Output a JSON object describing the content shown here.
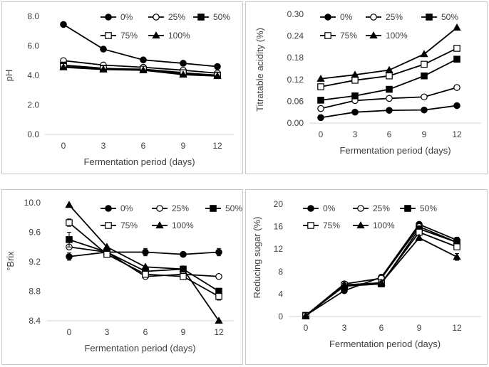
{
  "figure": {
    "legend_labels": [
      "0%",
      "25%",
      "50%",
      "75%",
      "100%"
    ]
  },
  "chart_data": [
    {
      "type": "line",
      "panel": "pH",
      "x": [
        0,
        3,
        6,
        9,
        12
      ],
      "xlabel": "Fermentation period (days)",
      "ylabel": "pH",
      "ylim": [
        0.0,
        8.0
      ],
      "yticks": [
        "0.0",
        "2.0",
        "4.0",
        "6.0",
        "8.0"
      ],
      "xticks": [
        "0",
        "3",
        "6",
        "9",
        "12"
      ],
      "grid": false,
      "legend": "top",
      "series": [
        {
          "name": "0%",
          "marker": "filled-circle",
          "values": [
            7.45,
            5.78,
            5.05,
            4.82,
            4.6
          ]
        },
        {
          "name": "25%",
          "marker": "open-circle",
          "values": [
            5.0,
            4.7,
            4.55,
            4.35,
            4.15
          ]
        },
        {
          "name": "50%",
          "marker": "filled-square",
          "values": [
            4.7,
            4.48,
            4.38,
            4.12,
            4.02
          ]
        },
        {
          "name": "75%",
          "marker": "open-square",
          "values": [
            4.6,
            4.45,
            4.42,
            4.18,
            4.0
          ]
        },
        {
          "name": "100%",
          "marker": "filled-triangle",
          "values": [
            4.55,
            4.4,
            4.35,
            4.05,
            3.95
          ]
        }
      ]
    },
    {
      "type": "line",
      "panel": "titratable-acidity",
      "x": [
        0,
        3,
        6,
        9,
        12
      ],
      "xlabel": "Fermentation period (days)",
      "ylabel": "Titratable acidity (%)",
      "ylim": [
        0.0,
        0.3
      ],
      "yticks": [
        "0.00",
        "0.06",
        "0.12",
        "0.18",
        "0.24",
        "0.30"
      ],
      "xticks": [
        "0",
        "3",
        "6",
        "9",
        "12"
      ],
      "grid": false,
      "legend": "top",
      "series": [
        {
          "name": "0%",
          "marker": "filled-circle",
          "values": [
            0.015,
            0.03,
            0.035,
            0.036,
            0.048
          ]
        },
        {
          "name": "25%",
          "marker": "open-circle",
          "values": [
            0.04,
            0.062,
            0.068,
            0.072,
            0.098
          ]
        },
        {
          "name": "50%",
          "marker": "filled-square",
          "values": [
            0.063,
            0.075,
            0.093,
            0.13,
            0.176
          ]
        },
        {
          "name": "75%",
          "marker": "open-square",
          "values": [
            0.1,
            0.118,
            0.13,
            0.162,
            0.206
          ]
        },
        {
          "name": "100%",
          "marker": "filled-triangle",
          "values": [
            0.122,
            0.133,
            0.146,
            0.19,
            0.263
          ]
        }
      ]
    },
    {
      "type": "line",
      "panel": "brix",
      "x": [
        0,
        3,
        6,
        9,
        12
      ],
      "xlabel": "Fermentation period (days)",
      "ylabel": "°Brix",
      "ylim": [
        8.4,
        10.0
      ],
      "yticks": [
        "8.4",
        "8.8",
        "9.2",
        "9.6",
        "10.0"
      ],
      "xticks": [
        "0",
        "3",
        "6",
        "9",
        "12"
      ],
      "grid": false,
      "legend": "top",
      "series": [
        {
          "name": "0%",
          "marker": "filled-circle",
          "values": [
            9.27,
            9.33,
            9.33,
            9.3,
            9.33
          ],
          "errors": [
            0.05,
            0.0,
            0.05,
            0.0,
            0.05
          ]
        },
        {
          "name": "25%",
          "marker": "open-circle",
          "values": [
            9.4,
            9.33,
            9.0,
            9.03,
            9.0
          ],
          "errors": [
            0.0,
            0.0,
            0.0,
            0.0,
            0.0
          ]
        },
        {
          "name": "50%",
          "marker": "filled-square",
          "values": [
            9.5,
            9.33,
            9.07,
            9.1,
            8.8
          ],
          "errors": [
            0.1,
            0.0,
            0.04,
            0.0,
            0.04
          ]
        },
        {
          "name": "75%",
          "marker": "open-square",
          "values": [
            9.73,
            9.3,
            9.03,
            9.0,
            8.73
          ],
          "errors": [
            0.05,
            0.0,
            0.04,
            0.04,
            0.05
          ]
        },
        {
          "name": "100%",
          "marker": "filled-triangle",
          "values": [
            9.97,
            9.4,
            9.13,
            9.1,
            8.4
          ],
          "errors": [
            0.0,
            0.0,
            0.0,
            0.0,
            0.0
          ]
        }
      ]
    },
    {
      "type": "line",
      "panel": "reducing-sugar",
      "x": [
        0,
        3,
        6,
        9,
        12
      ],
      "xlabel": "Fermentation period (days)",
      "ylabel": "Reducing sugar (%)",
      "ylim": [
        0,
        20
      ],
      "yticks": [
        "0",
        "4",
        "8",
        "12",
        "16",
        "20"
      ],
      "xticks": [
        "0",
        "3",
        "6",
        "9",
        "12"
      ],
      "grid": false,
      "legend": "top",
      "series": [
        {
          "name": "0%",
          "marker": "filled-circle",
          "values": [
            0.2,
            4.6,
            7.0,
            16.4,
            13.6
          ],
          "errors": [
            0.0,
            0.3,
            0.3,
            0.3,
            0.5
          ]
        },
        {
          "name": "25%",
          "marker": "open-circle",
          "values": [
            0.2,
            5.8,
            6.8,
            16.0,
            13.2
          ],
          "errors": [
            0.0,
            0.3,
            0.3,
            0.3,
            0.4
          ]
        },
        {
          "name": "50%",
          "marker": "filled-square",
          "values": [
            0.2,
            5.4,
            5.8,
            15.6,
            13.2
          ],
          "errors": [
            0.0,
            0.3,
            0.3,
            0.3,
            0.4
          ]
        },
        {
          "name": "75%",
          "marker": "open-square",
          "values": [
            0.1,
            5.6,
            6.0,
            15.0,
            12.4
          ],
          "errors": [
            0.0,
            0.3,
            0.3,
            0.3,
            0.4
          ]
        },
        {
          "name": "100%",
          "marker": "filled-triangle",
          "values": [
            0.1,
            5.6,
            6.0,
            14.0,
            10.6
          ],
          "errors": [
            0.0,
            0.3,
            0.3,
            0.5,
            0.6
          ]
        }
      ]
    }
  ]
}
